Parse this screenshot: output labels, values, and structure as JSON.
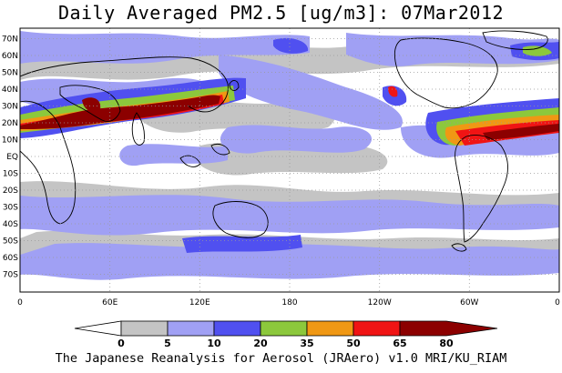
{
  "title": "Daily Averaged PM2.5 [ug/m3]: 07Mar2012",
  "footer": "The Japanese Reanalysis for Aerosol (JRAero) v1.0 MRI/KU_RIAM",
  "map": {
    "lat_labels": [
      "70N",
      "60N",
      "50N",
      "40N",
      "30N",
      "20N",
      "10N",
      "EQ",
      "10S",
      "20S",
      "30S",
      "40S",
      "50S",
      "60S",
      "70S"
    ],
    "lon_labels": [
      "0",
      "60E",
      "120E",
      "180",
      "120W",
      "60W",
      "0"
    ],
    "grid": "dotted"
  },
  "colorbar": {
    "bins": [
      {
        "color": "#ffffff"
      },
      {
        "color": "#c4c4c4"
      },
      {
        "color": "#a0a0f4"
      },
      {
        "color": "#5050f0"
      },
      {
        "color": "#8cc83c"
      },
      {
        "color": "#f09814"
      },
      {
        "color": "#f01414"
      },
      {
        "color": "#8c0000"
      }
    ],
    "tick_labels": [
      "0",
      "5",
      "10",
      "20",
      "35",
      "50",
      "65",
      "80"
    ]
  },
  "colors": {
    "gray": "#c4c4c4",
    "light_blue": "#a0a0f4",
    "blue": "#5050f0",
    "green": "#8cc83c",
    "orange": "#f09814",
    "red": "#f01414",
    "dark_red": "#8c0000"
  }
}
